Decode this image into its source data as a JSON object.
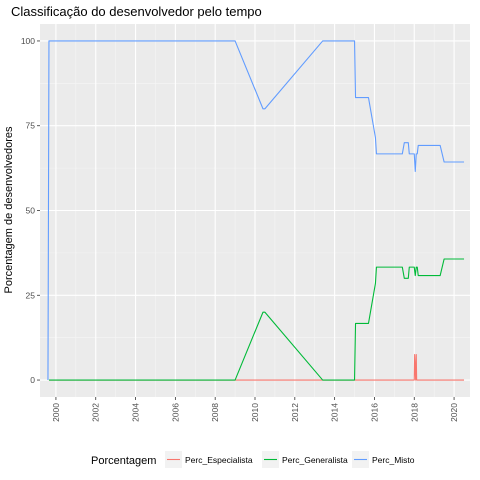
{
  "chart_data": {
    "type": "line",
    "title": "Classificação do desenvolvedor pelo tempo",
    "xlabel": "",
    "ylabel": "Porcentagem de desenvolvedores",
    "xlim": [
      1999.2,
      2020.8
    ],
    "ylim": [
      -5,
      105
    ],
    "x_ticks": [
      "2000",
      "2002",
      "2004",
      "2006",
      "2008",
      "2010",
      "2012",
      "2014",
      "2016",
      "2018",
      "2020"
    ],
    "y_ticks": [
      "0",
      "25",
      "50",
      "75",
      "100"
    ],
    "grid": true,
    "legend": {
      "title": "Porcentagem",
      "position": "bottom"
    },
    "series": [
      {
        "name": "Perc_Especialista",
        "color": "#F8766D",
        "points": [
          [
            1999.65,
            0
          ],
          [
            2009.0,
            0
          ],
          [
            2010.4,
            0
          ],
          [
            2013.4,
            0
          ],
          [
            2015.0,
            0
          ],
          [
            2016.0,
            0
          ],
          [
            2018.0,
            0
          ],
          [
            2018.02,
            7.5
          ],
          [
            2018.07,
            0
          ],
          [
            2018.1,
            7.5
          ],
          [
            2018.12,
            0
          ],
          [
            2019.0,
            0
          ],
          [
            2020.5,
            0
          ]
        ]
      },
      {
        "name": "Perc_Generalista",
        "color": "#00BA38",
        "points": [
          [
            1999.65,
            0
          ],
          [
            2009.0,
            0
          ],
          [
            2010.4,
            20
          ],
          [
            2010.5,
            20
          ],
          [
            2013.4,
            0
          ],
          [
            2015.0,
            0
          ],
          [
            2015.05,
            16.7
          ],
          [
            2015.7,
            16.7
          ],
          [
            2016.05,
            28.5
          ],
          [
            2016.1,
            33.3
          ],
          [
            2017.4,
            33.3
          ],
          [
            2017.5,
            30
          ],
          [
            2017.7,
            30
          ],
          [
            2017.75,
            33.3
          ],
          [
            2018.0,
            33.3
          ],
          [
            2018.05,
            30.8
          ],
          [
            2018.1,
            33.3
          ],
          [
            2018.15,
            33.3
          ],
          [
            2018.2,
            30.8
          ],
          [
            2019.3,
            30.8
          ],
          [
            2019.5,
            35.7
          ],
          [
            2020.5,
            35.7
          ]
        ]
      },
      {
        "name": "Perc_Misto",
        "color": "#619CFF",
        "points": [
          [
            1999.6,
            0
          ],
          [
            1999.65,
            100
          ],
          [
            2009.0,
            100
          ],
          [
            2010.4,
            80
          ],
          [
            2010.5,
            80
          ],
          [
            2013.4,
            100
          ],
          [
            2015.0,
            100
          ],
          [
            2015.05,
            83.3
          ],
          [
            2015.7,
            83.3
          ],
          [
            2016.05,
            71.5
          ],
          [
            2016.1,
            66.7
          ],
          [
            2017.4,
            66.7
          ],
          [
            2017.5,
            70
          ],
          [
            2017.7,
            70
          ],
          [
            2017.75,
            66.7
          ],
          [
            2018.0,
            66.7
          ],
          [
            2018.05,
            61.5
          ],
          [
            2018.1,
            66.7
          ],
          [
            2018.15,
            66.7
          ],
          [
            2018.2,
            69.2
          ],
          [
            2019.3,
            69.2
          ],
          [
            2019.5,
            64.3
          ],
          [
            2020.5,
            64.3
          ]
        ]
      }
    ]
  }
}
